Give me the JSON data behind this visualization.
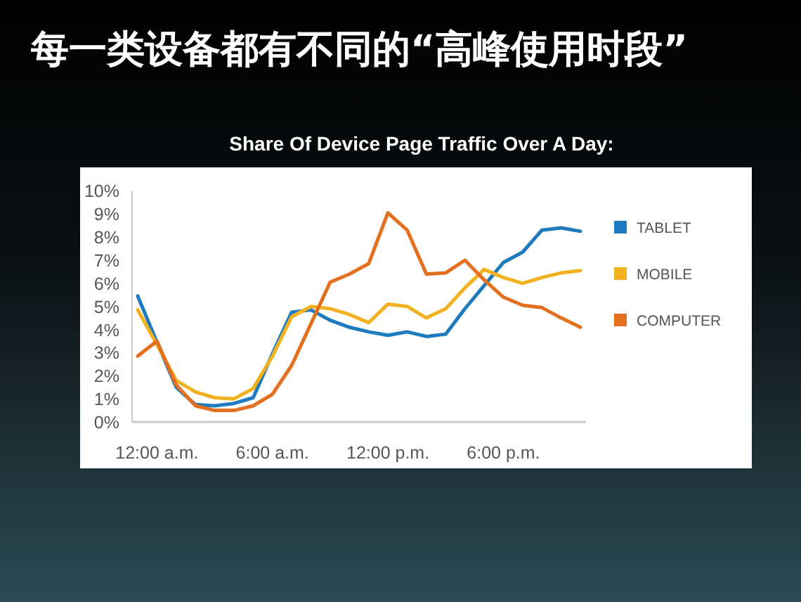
{
  "chart_data": {
    "type": "line",
    "title": "每一类设备都有不同的“高峰使用时段”",
    "subtitle": "Share Of Device Page Traffic Over A Day:",
    "categories": [
      null,
      "12:00 a.m.",
      null,
      null,
      null,
      null,
      null,
      "6:00 a.m.",
      null,
      null,
      null,
      null,
      null,
      "12:00 p.m.",
      null,
      null,
      null,
      null,
      null,
      "6:00 p.m.",
      null,
      null,
      null,
      null
    ],
    "series": [
      {
        "name": "TABLET",
        "color": "#1f7bbf",
        "values": [
          5.45,
          3.45,
          1.5,
          0.75,
          0.7,
          0.8,
          1.05,
          2.95,
          4.75,
          4.85,
          4.4,
          4.1,
          3.9,
          3.75,
          3.9,
          3.7,
          3.8,
          4.9,
          5.9,
          6.9,
          7.35,
          8.3,
          8.4,
          8.25
        ]
      },
      {
        "name": "MOBILE",
        "color": "#f2b21f",
        "values": [
          4.85,
          3.35,
          1.8,
          1.3,
          1.05,
          1.0,
          1.45,
          2.85,
          4.55,
          5.0,
          4.9,
          4.65,
          4.3,
          5.1,
          5.0,
          4.5,
          4.9,
          5.8,
          6.6,
          6.25,
          6.0,
          6.25,
          6.45,
          6.55
        ]
      },
      {
        "name": "COMPUTER",
        "color": "#e4701f",
        "values": [
          2.85,
          3.5,
          1.6,
          0.7,
          0.5,
          0.5,
          0.7,
          1.2,
          2.45,
          4.25,
          6.05,
          6.4,
          6.85,
          9.05,
          8.3,
          6.4,
          6.45,
          7.0,
          6.15,
          5.4,
          5.05,
          4.95,
          4.5,
          4.1
        ]
      }
    ],
    "ylim": [
      0,
      10
    ],
    "yticks": [
      {
        "value": 0,
        "label": "0%"
      },
      {
        "value": 1,
        "label": "1%"
      },
      {
        "value": 2,
        "label": "2%"
      },
      {
        "value": 3,
        "label": "3%"
      },
      {
        "value": 4,
        "label": "4%"
      },
      {
        "value": 5,
        "label": "5%"
      },
      {
        "value": 6,
        "label": "6%"
      },
      {
        "value": 7,
        "label": "7%"
      },
      {
        "value": 8,
        "label": "8%"
      },
      {
        "value": 9,
        "label": "9%"
      },
      {
        "value": 10,
        "label": "10%"
      }
    ],
    "grid": false,
    "legend": "right",
    "line_style": "solid"
  }
}
